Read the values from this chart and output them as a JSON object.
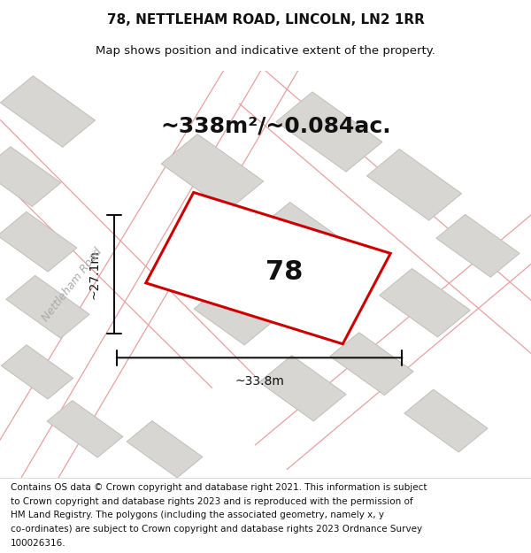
{
  "title_line1": "78, NETTLEHAM ROAD, LINCOLN, LN2 1RR",
  "title_line2": "Map shows position and indicative extent of the property.",
  "area_text": "~338m²/~0.084ac.",
  "label_number": "78",
  "dim_width": "~33.8m",
  "dim_height": "~27.1m",
  "road_label": "Nettleham Road",
  "footer_line1": "Contains OS data © Crown copyright and database right 2021. This information is subject",
  "footer_line2": "to Crown copyright and database rights 2023 and is reproduced with the permission of",
  "footer_line3": "HM Land Registry. The polygons (including the associated geometry, namely x, y",
  "footer_line4": "co-ordinates) are subject to Crown copyright and database rights 2023 Ordnance Survey",
  "footer_line5": "100026316.",
  "map_bg": "#f0eeeb",
  "plot_outline_color": "#cc0000",
  "building_color": "#d8d6d3",
  "building_edge": "#c0bebb",
  "road_line_color": "#e8a0a0",
  "dim_line_color": "#111111",
  "title_fontsize": 11,
  "subtitle_fontsize": 9.5,
  "area_fontsize": 18,
  "label_fontsize": 22,
  "dim_fontsize": 10,
  "road_label_fontsize": 9,
  "footer_fontsize": 7.5
}
